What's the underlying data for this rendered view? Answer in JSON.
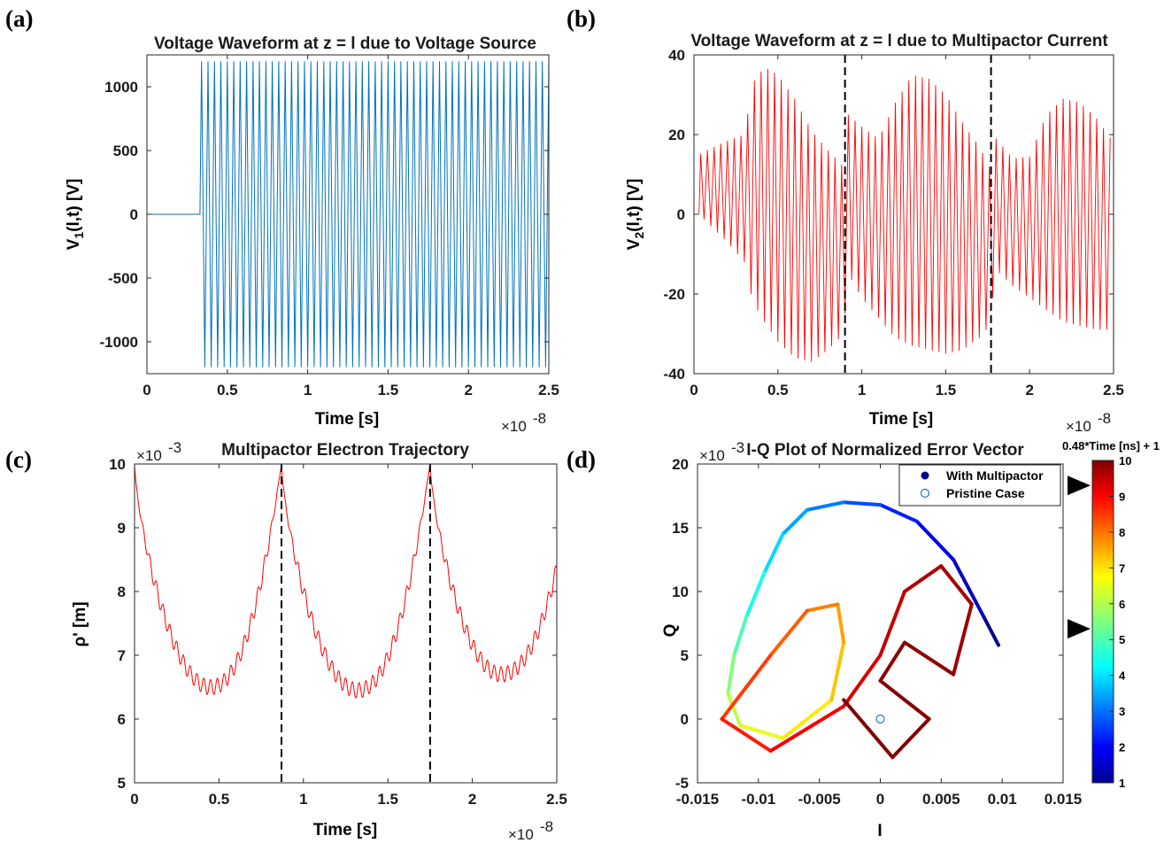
{
  "panels": {
    "a": {
      "label": "(a)"
    },
    "b": {
      "label": "(b)"
    },
    "c": {
      "label": "(c)"
    },
    "d": {
      "label": "(d)"
    }
  },
  "chart_data": [
    {
      "id": "a",
      "type": "line",
      "title": "Voltage Waveform at z = l due to Voltage Source",
      "xlabel": "Time [s]",
      "ylabel": "V1(l,t) [V]",
      "ylabel_main": "V",
      "ylabel_sub": "1",
      "ylabel_rest": "(l,t) [V]",
      "x_multiplier": "×10",
      "x_exponent": "-8",
      "xlim": [
        0,
        2.5
      ],
      "ylim": [
        -1250,
        1250
      ],
      "xticks": [
        0,
        0.5,
        1,
        1.5,
        2,
        2.5
      ],
      "xticklabels": [
        "0",
        "0.5",
        "1",
        "1.5",
        "2",
        "2.5"
      ],
      "yticks": [
        1000,
        500,
        0,
        -500,
        -1000
      ],
      "yticklabels": [
        "1000",
        "500",
        "0",
        "-500",
        "-1000"
      ],
      "color": "#0072bd",
      "series": [
        {
          "values_description_free": true,
          "onset": 0.33,
          "amplitude": 1200,
          "period": 0.04,
          "baseline_before_onset": 0
        }
      ]
    },
    {
      "id": "b",
      "type": "line",
      "title": "Voltage Waveform at z = l due to Multipactor Current",
      "xlabel": "Time [s]",
      "ylabel": "V2(l,t) [V]",
      "ylabel_main": "V",
      "ylabel_sub": "2",
      "ylabel_rest": "(l,t) [V]",
      "x_multiplier": "×10",
      "x_exponent": "-8",
      "xlim": [
        0,
        2.5
      ],
      "ylim": [
        -40,
        40
      ],
      "xticks": [
        0,
        0.5,
        1,
        1.5,
        2,
        2.5
      ],
      "xticklabels": [
        "0",
        "0.5",
        "1",
        "1.5",
        "2",
        "2.5"
      ],
      "yticks": [
        40,
        20,
        0,
        -20,
        -40
      ],
      "yticklabels": [
        "40",
        "20",
        "0",
        "-20",
        "-40"
      ],
      "color": "#ff0000",
      "vlines": [
        0.9,
        1.77
      ],
      "envelope": {
        "x": [
          0.03,
          0.1,
          0.2,
          0.3,
          0.35,
          0.42,
          0.5,
          0.6,
          0.7,
          0.8,
          0.89,
          0.92,
          1.0,
          1.1,
          1.2,
          1.3,
          1.4,
          1.5,
          1.6,
          1.7,
          1.76,
          1.8,
          1.9,
          2.0,
          2.1,
          2.2,
          2.3,
          2.4,
          2.5
        ],
        "upper": [
          15,
          16.5,
          18.5,
          20,
          33,
          37,
          35,
          29,
          21,
          16,
          12,
          25,
          22,
          19,
          28,
          35,
          34,
          30,
          23,
          17,
          12,
          19,
          14,
          14.5,
          25,
          29,
          28,
          24,
          18
        ],
        "lower": [
          0,
          -3,
          -7,
          -12,
          -22,
          -27,
          -32,
          -36,
          -37,
          -34,
          -30,
          -15,
          -21,
          -26,
          -31,
          -33,
          -34,
          -35,
          -34,
          -31,
          -28,
          -14,
          -18,
          -21,
          -24,
          -27,
          -28,
          -29,
          -29
        ]
      }
    },
    {
      "id": "c",
      "type": "line",
      "title": "Multipactor Electron Trajectory",
      "xlabel": "Time [s]",
      "ylabel": "ρ' [m]",
      "y_multiplier": "×10",
      "y_exponent": "-3",
      "x_multiplier": "×10",
      "x_exponent": "-8",
      "xlim": [
        0,
        2.5
      ],
      "ylim": [
        5,
        10
      ],
      "xticks": [
        0,
        0.5,
        1,
        1.5,
        2,
        2.5
      ],
      "xticklabels": [
        "0",
        "0.5",
        "1",
        "1.5",
        "2",
        "2.5"
      ],
      "yticks": [
        10,
        9,
        8,
        7,
        6,
        5
      ],
      "yticklabels": [
        "10",
        "9",
        "8",
        "7",
        "6",
        "5"
      ],
      "color": "#ff0000",
      "vlines": [
        0.87,
        1.75
      ],
      "min_points": [
        [
          0.45,
          6.55
        ],
        [
          1.32,
          6.5
        ],
        [
          2.17,
          6.75
        ]
      ],
      "max_points": [
        [
          0,
          10
        ],
        [
          0.87,
          10
        ],
        [
          1.75,
          10
        ]
      ]
    },
    {
      "id": "d",
      "type": "scatter",
      "title": "I-Q Plot of Normalized Error Vector",
      "xlabel": "I",
      "ylabel": "Q",
      "y_multiplier": "×10",
      "y_exponent": "-3",
      "xlim": [
        -0.015,
        0.015
      ],
      "ylim": [
        -5,
        20
      ],
      "xticks": [
        -0.015,
        -0.01,
        -0.005,
        0,
        0.005,
        0.01,
        0.015
      ],
      "xticklabels": [
        "-0.015",
        "-0.01",
        "-0.005",
        "0",
        "0.005",
        "0.01",
        "0.015"
      ],
      "yticks": [
        20,
        15,
        10,
        5,
        0,
        -5
      ],
      "yticklabels": [
        "20",
        "15",
        "10",
        "5",
        "0",
        "-5"
      ],
      "legend": [
        {
          "name": "With Multipactor",
          "marker": "filled-circle",
          "color": "#00008b"
        },
        {
          "name": "Pristine Case",
          "marker": "open-circle",
          "color": "#1f77b4"
        }
      ],
      "legend_position": "top-right",
      "pristine_point": [
        0,
        0
      ],
      "colorbar": {
        "title": "0.48*Time [ns] + 1",
        "range": [
          1,
          10
        ],
        "ticks": [
          10,
          9,
          8,
          7,
          6,
          5,
          4,
          3,
          2,
          1
        ],
        "ticklabels": [
          "10",
          "9",
          "8",
          "7",
          "6",
          "5",
          "4",
          "3",
          "2",
          "1"
        ],
        "colormap": "jet",
        "arrow_markers": [
          9.3,
          5.3
        ]
      }
    }
  ]
}
